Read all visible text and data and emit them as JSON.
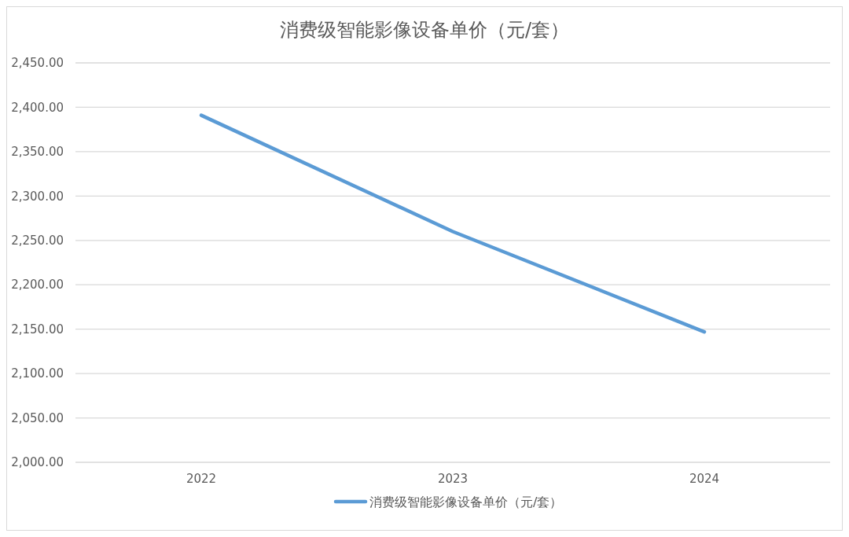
{
  "chart_data": {
    "type": "line",
    "title": "消费级智能影像设备单价（元/套）",
    "categories": [
      "2022",
      "2023",
      "2024"
    ],
    "series": [
      {
        "name": "消费级智能影像设备单价（元/套）",
        "color": "#5b9bd5",
        "values": [
          2391,
          2260,
          2147
        ]
      }
    ],
    "ylim": [
      2000,
      2450
    ],
    "yticks": [
      {
        "value": 2000,
        "label": "2,000.00"
      },
      {
        "value": 2050,
        "label": "2,050.00"
      },
      {
        "value": 2100,
        "label": "2,100.00"
      },
      {
        "value": 2150,
        "label": "2,150.00"
      },
      {
        "value": 2200,
        "label": "2,200.00"
      },
      {
        "value": 2250,
        "label": "2,250.00"
      },
      {
        "value": 2300,
        "label": "2,300.00"
      },
      {
        "value": 2350,
        "label": "2,350.00"
      },
      {
        "value": 2400,
        "label": "2,400.00"
      },
      {
        "value": 2450,
        "label": "2,450.00"
      }
    ],
    "grid": "y",
    "legend": "bottom",
    "marker": "none",
    "line_style": "solid"
  }
}
